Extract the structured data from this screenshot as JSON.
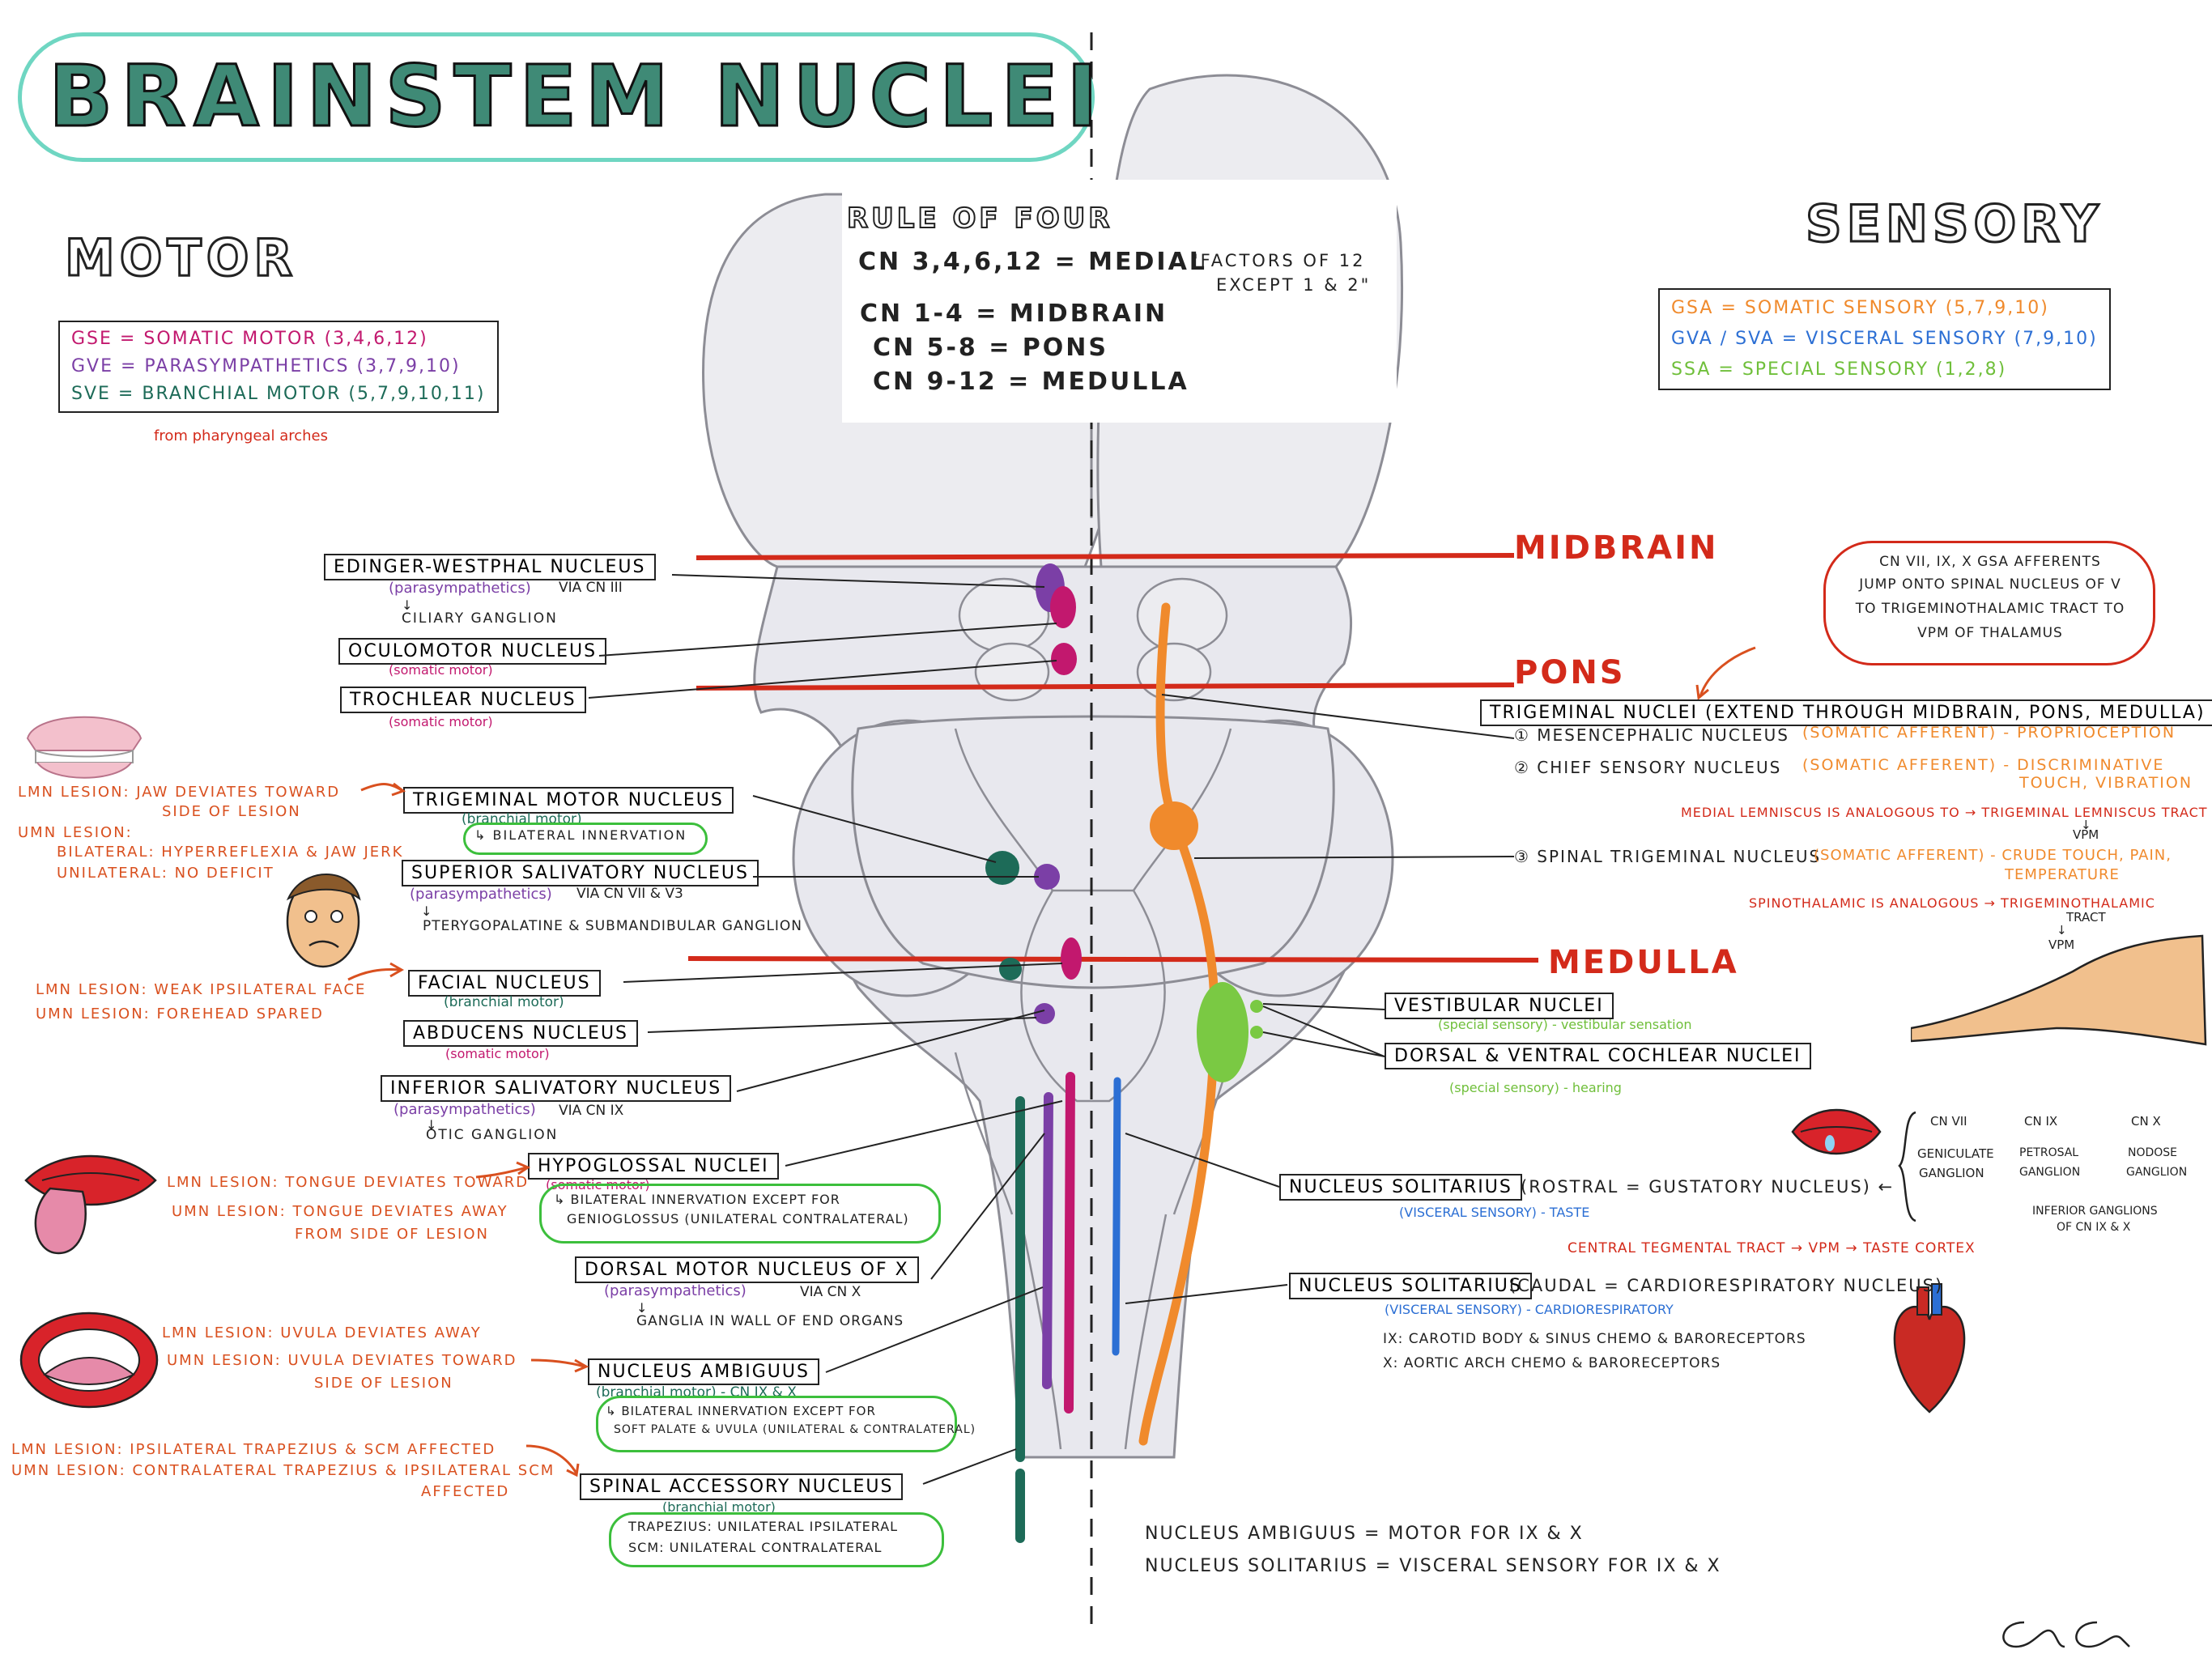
{
  "title": "BRAINSTEM NUCLEI",
  "headings": {
    "motor": "MOTOR",
    "sensory": "SENSORY"
  },
  "colors": {
    "title_fill": "#3f8a76",
    "title_outline": "#6fd6c2",
    "level_line": "#d32a1a",
    "gse": "#c2186e",
    "gve": "#7b3fa6",
    "sve": "#1d6b58",
    "gsa": "#f08a2c",
    "gva": "#2c6fd4",
    "ssa": "#6fbf3a",
    "lesion": "#d9501f"
  },
  "rule_of_four": {
    "title": "RULE OF FOUR",
    "lines": [
      "CN 3,4,6,12 = MEDIAL",
      "CN 1-4 = MIDBRAIN",
      "CN 5-8 = PONS",
      "CN 9-12 = MEDULLA"
    ],
    "factors_note_1": "\"FACTORS OF 12",
    "factors_note_2": "EXCEPT 1 & 2\""
  },
  "motor_legend": [
    {
      "abbr": "GSE",
      "text": "= SOMATIC MOTOR (3,4,6,12)"
    },
    {
      "abbr": "GVE",
      "text": "= PARASYMPATHETICS (3,7,9,10)"
    },
    {
      "abbr": "SVE",
      "text": "= BRANCHIAL MOTOR (5,7,9,10,11)"
    }
  ],
  "motor_legend_note": "from pharyngeal arches",
  "sensory_legend": [
    {
      "abbr": "GSA",
      "text": "= SOMATIC SENSORY (5,7,9,10)"
    },
    {
      "abbr": "GVA / SVA",
      "text": "= VISCERAL SENSORY (7,9,10)"
    },
    {
      "abbr": "SSA",
      "text": "= SPECIAL SENSORY (1,2,8)"
    }
  ],
  "levels": {
    "midbrain": "MIDBRAIN",
    "pons": "PONS",
    "medulla": "MEDULLA"
  },
  "motor_nuclei": {
    "edinger_westphal": {
      "name": "EDINGER-WESTPHAL NUCLEUS",
      "sub": "(parasympathetics)",
      "via": "VIA CN III",
      "arrow": "↓",
      "target": "CILIARY GANGLION"
    },
    "oculomotor": {
      "name": "OCULOMOTOR NUCLEUS",
      "sub": "(somatic motor)"
    },
    "trochlear": {
      "name": "TROCHLEAR NUCLEUS",
      "sub": "(somatic motor)"
    },
    "trigeminal_motor": {
      "name": "TRIGEMINAL MOTOR NUCLEUS",
      "sub": "(branchial motor)",
      "note": "↳ BILATERAL INNERVATION"
    },
    "superior_salivatory": {
      "name": "SUPERIOR SALIVATORY NUCLEUS",
      "sub": "(parasympathetics)",
      "via": "VIA CN VII & V3",
      "arrow": "↓",
      "target": "PTERYGOPALATINE & SUBMANDIBULAR GANGLION"
    },
    "facial": {
      "name": "FACIAL NUCLEUS",
      "sub": "(branchial motor)"
    },
    "abducens": {
      "name": "ABDUCENS NUCLEUS",
      "sub": "(somatic motor)"
    },
    "inferior_salivatory": {
      "name": "INFERIOR SALIVATORY NUCLEUS",
      "sub": "(parasympathetics)",
      "via": "VIA CN IX",
      "arrow": "↓",
      "target": "OTIC GANGLION"
    },
    "hypoglossal": {
      "name": "HYPOGLOSSAL NUCLEI",
      "sub": "(somatic motor)",
      "note1": "↳ BILATERAL INNERVATION EXCEPT FOR",
      "note2": "GENIOGLOSSUS (UNILATERAL CONTRALATERAL)"
    },
    "dorsal_motor_x": {
      "name": "DORSAL MOTOR NUCLEUS OF X",
      "sub": "(parasympathetics)",
      "via": "VIA CN X",
      "arrow": "↓",
      "target": "GANGLIA IN WALL OF END ORGANS"
    },
    "ambiguus": {
      "name": "NUCLEUS AMBIGUUS",
      "sub": "(branchial motor) - CN IX & X",
      "note1": "↳ BILATERAL INNERVATION EXCEPT FOR",
      "note2": "SOFT PALATE & UVULA (UNILATERAL & CONTRALATERAL)"
    },
    "spinal_accessory": {
      "name": "SPINAL ACCESSORY NUCLEUS",
      "sub": "(branchial motor)",
      "note1": "TRAPEZIUS: UNILATERAL IPSILATERAL",
      "note2": "SCM: UNILATERAL CONTRALATERAL"
    }
  },
  "lesions": {
    "jaw": [
      "LMN LESION: JAW DEVIATES TOWARD",
      "SIDE OF LESION",
      "UMN LESION:",
      "BILATERAL: HYPERREFLEXIA & JAW JERK",
      "UNILATERAL: NO DEFICIT"
    ],
    "face": [
      "LMN LESION: WEAK IPSILATERAL FACE",
      "UMN LESION: FOREHEAD SPARED"
    ],
    "tongue": [
      "LMN LESION: TONGUE DEVIATES TOWARD",
      "UMN LESION: TONGUE DEVIATES AWAY",
      "FROM SIDE OF LESION"
    ],
    "uvula": [
      "LMN LESION: UVULA DEVIATES AWAY",
      "UMN LESION: UVULA DEVIATES TOWARD",
      "SIDE OF LESION"
    ],
    "trapezius": [
      "LMN LESION: IPSILATERAL TRAPEZIUS & SCM AFFECTED",
      "UMN LESION: CONTRALATERAL TRAPEZIUS & IPSILATERAL SCM",
      "AFFECTED"
    ]
  },
  "sensory_nuclei": {
    "gsa_note": [
      "CN VII, IX, X GSA AFFERENTS",
      "JUMP ONTO SPINAL NUCLEUS OF V",
      "TO TRIGEMINOTHALAMIC TRACT TO",
      "VPM OF THALAMUS"
    ],
    "trigeminal": {
      "name": "TRIGEMINAL NUCLEI (EXTEND THROUGH MIDBRAIN, PONS, MEDULLA)"
    },
    "mesencephalic": {
      "name": "① MESENCEPHALIC NUCLEUS",
      "sub": "(SOMATIC AFFERENT) - PROPRIOCEPTION"
    },
    "chief": {
      "name": "② CHIEF SENSORY NUCLEUS",
      "sub1": "(SOMATIC AFFERENT) - DISCRIMINATIVE",
      "sub2": "TOUCH, VIBRATION",
      "note": "MEDIAL LEMNISCUS IS ANALOGOUS TO → TRIGEMINAL LEMNISCUS TRACT",
      "arrow": "↓",
      "target": "VPM"
    },
    "spinal": {
      "name": "③ SPINAL TRIGEMINAL NUCLEUS",
      "sub1": "(SOMATIC AFFERENT) - CRUDE TOUCH, PAIN,",
      "sub2": "TEMPERATURE",
      "note1": "SPINOTHALAMIC IS ANALOGOUS → TRIGEMINOTHALAMIC",
      "note2": "TRACT",
      "arrow": "↓",
      "target": "VPM"
    },
    "vestibular": {
      "name": "VESTIBULAR NUCLEI",
      "sub": "(special sensory) - vestibular sensation"
    },
    "cochlear": {
      "name": "DORSAL & VENTRAL COCHLEAR NUCLEI",
      "sub": "(special sensory) - hearing"
    },
    "solitarius_rostral": {
      "name": "NUCLEUS SOLITARIUS",
      "rest": "(ROSTRAL = GUSTATORY NUCLEUS) ←",
      "sub": "(VISCERAL SENSORY) - TASTE",
      "note": "CENTRAL TEGMENTAL TRACT → VPM → TASTE CORTEX"
    },
    "solitarius_caudal": {
      "name": "NUCLEUS SOLITARIUS",
      "rest": "(CAUDAL = CARDIORESPIRATORY NUCLEUS)",
      "sub": "(VISCERAL SENSORY) - CARDIORESPIRATORY",
      "note1": "IX: CAROTID BODY & SINUS CHEMO & BARORECEPTORS",
      "note2": "X: AORTIC ARCH CHEMO & BARORECEPTORS"
    },
    "ganglia": [
      {
        "cn": "CN VII",
        "name1": "GENICULATE",
        "name2": "GANGLION"
      },
      {
        "cn": "CN IX",
        "name1": "PETROSAL",
        "name2": "GANGLION"
      },
      {
        "cn": "CN X",
        "name1": "NODOSE",
        "name2": "GANGLION"
      }
    ],
    "ganglia_note1": "INFERIOR GANGLIONS",
    "ganglia_note2": "OF CN IX & X"
  },
  "summary": [
    "NUCLEUS AMBIGUUS = MOTOR FOR IX & X",
    "NUCLEUS SOLITARIUS = VISCERAL SENSORY FOR IX & X"
  ]
}
